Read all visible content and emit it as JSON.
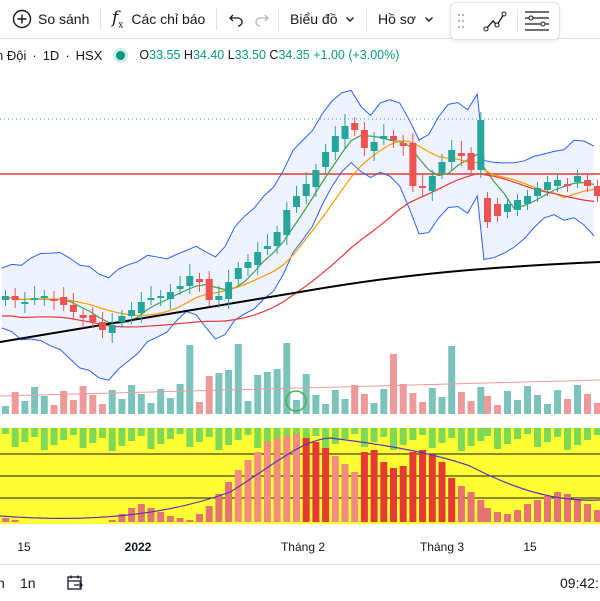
{
  "toolbar": {
    "compare_label": "So sánh",
    "indicators_label": "Các chỉ báo",
    "chart_type_label": "Biểu đồ",
    "profile_label": "Hồ sơ"
  },
  "legend": {
    "symbol": "n Đội",
    "interval": "1D",
    "exchange": "HSX",
    "open_label": "O",
    "open_value": "33.55",
    "high_label": "H",
    "high_value": "34.40",
    "low_label": "L",
    "low_value": "33.50",
    "close_label": "C",
    "close_value": "34.35",
    "change": "+1.00 (+3.00%)"
  },
  "time_axis": {
    "labels": [
      "15",
      "2022",
      "Tháng 2",
      "Tháng 3",
      "15"
    ]
  },
  "bottom_bar": {
    "range_label": "n",
    "one_month": "1n",
    "time": "09:42:"
  },
  "colors": {
    "up": "#26a69a",
    "down": "#ef5350",
    "up_volume": "#7cc4bb",
    "down_volume": "#ef9a9a",
    "bollinger": "#2962ff",
    "ma_long": "#000000",
    "ma_mid": "#e53935",
    "ma_orange": "#ff9800",
    "ma_green": "#43a047",
    "resistance": "#e53935"
  }
}
